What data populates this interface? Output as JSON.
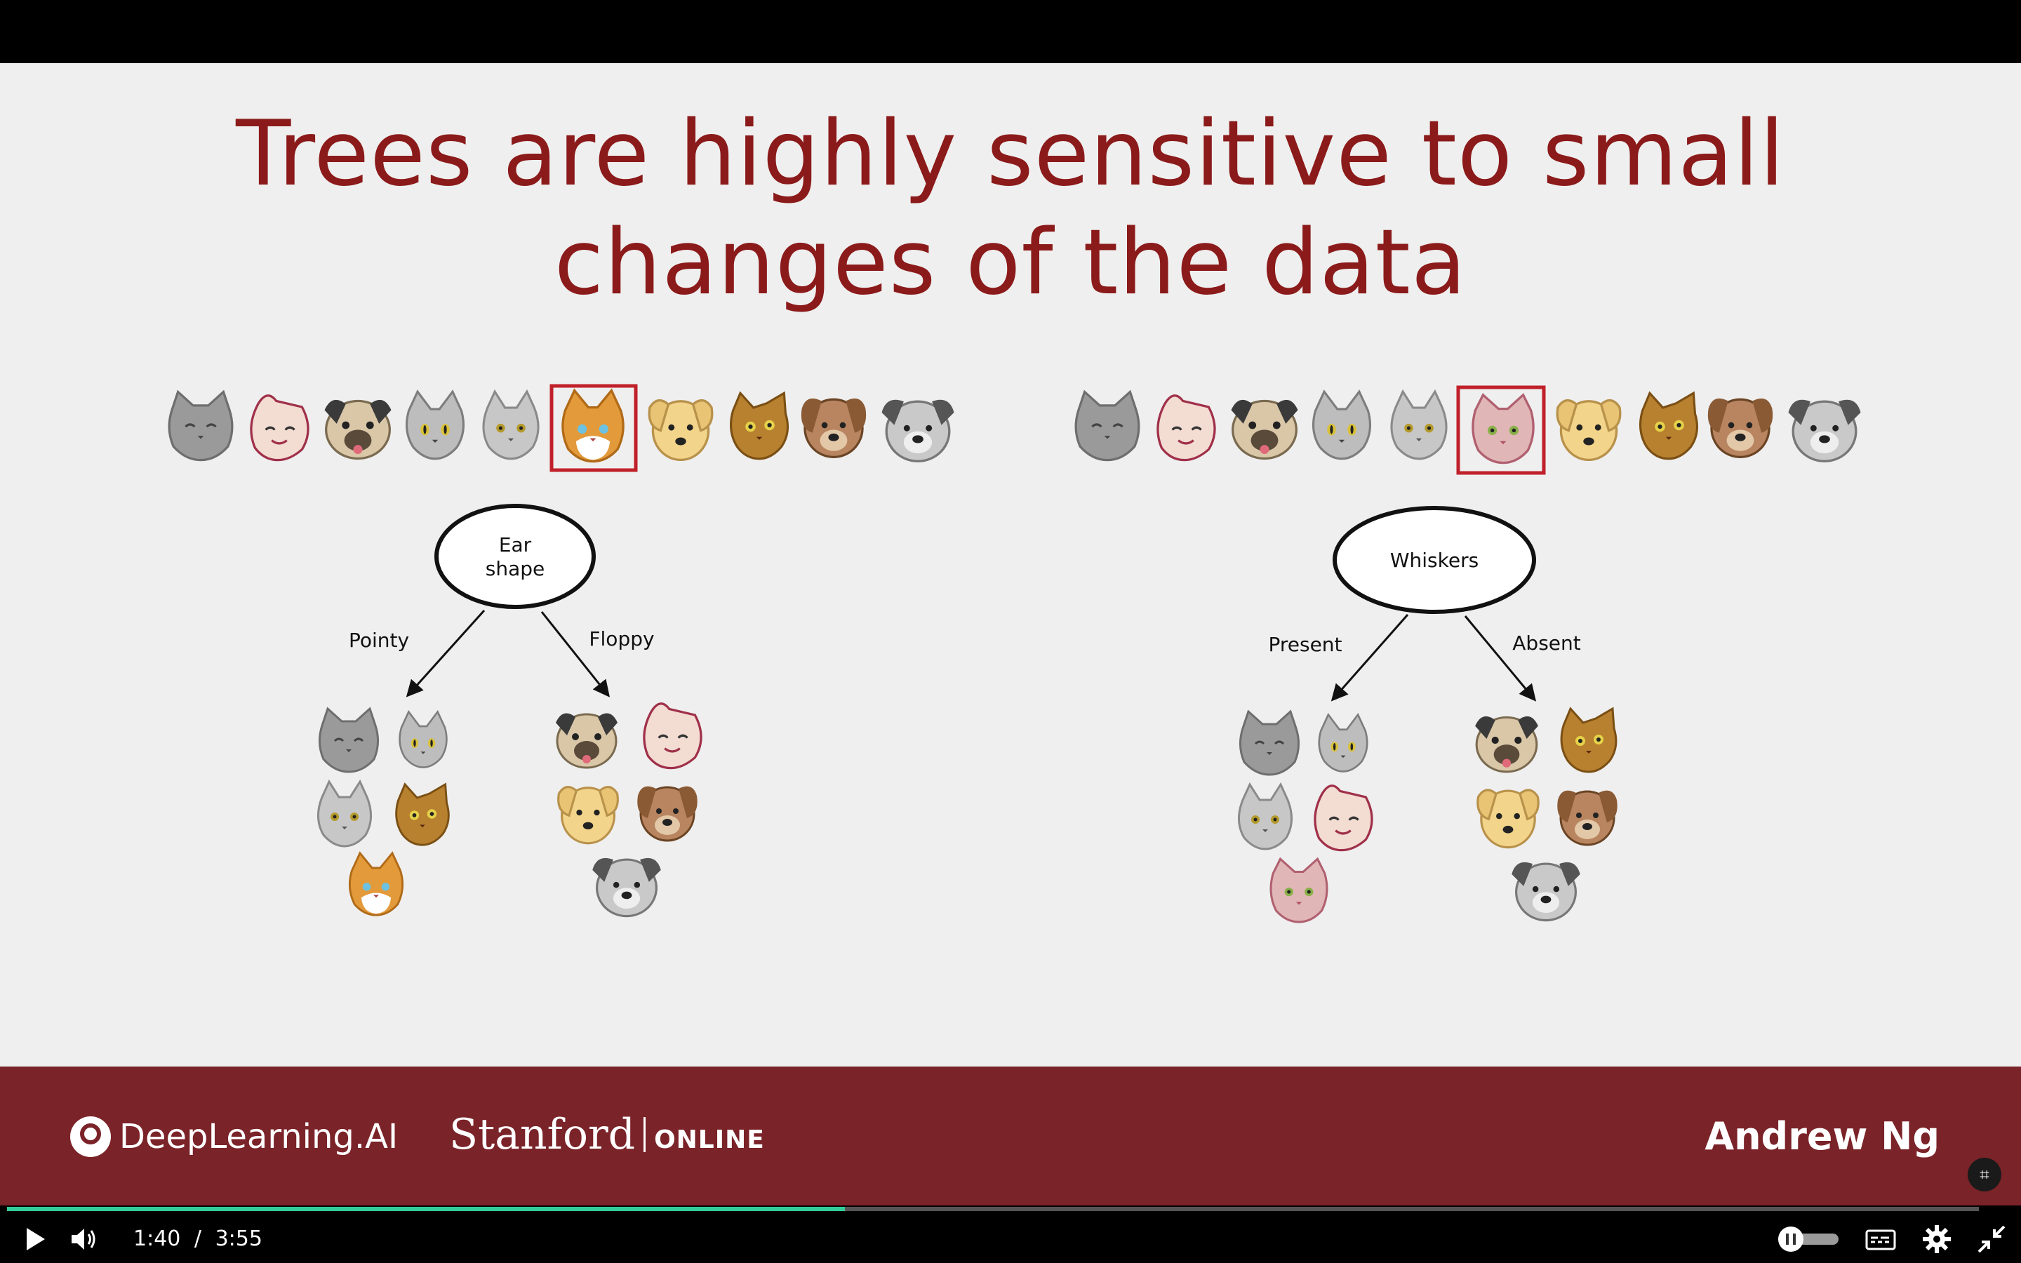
{
  "player": {
    "current_time": "1:40",
    "separator": "/",
    "duration": "3:55",
    "progress_fraction": 0.425,
    "icons": [
      "play-icon",
      "volume-icon",
      "autoplay-toggle",
      "captions-icon",
      "settings-icon",
      "exit-fullscreen-icon"
    ]
  },
  "slide": {
    "title_line1": "Trees are highly sensitive to small",
    "title_line2": "changes of the data",
    "left_tree": {
      "root_line1": "Ear",
      "root_line2": "shape",
      "left_branch": "Pointy",
      "right_branch": "Floppy"
    },
    "right_tree": {
      "root": "Whiskers",
      "left_branch": "Present",
      "right_branch": "Absent"
    }
  },
  "footer": {
    "brand": "DeepLearning.AI",
    "partner_main": "Stanford",
    "partner_sub": "ONLINE",
    "author": "Andrew Ng"
  },
  "colors": {
    "title": "#8b1a1a",
    "footer_bg": "#7a2328",
    "highlight": "#c0202a"
  }
}
